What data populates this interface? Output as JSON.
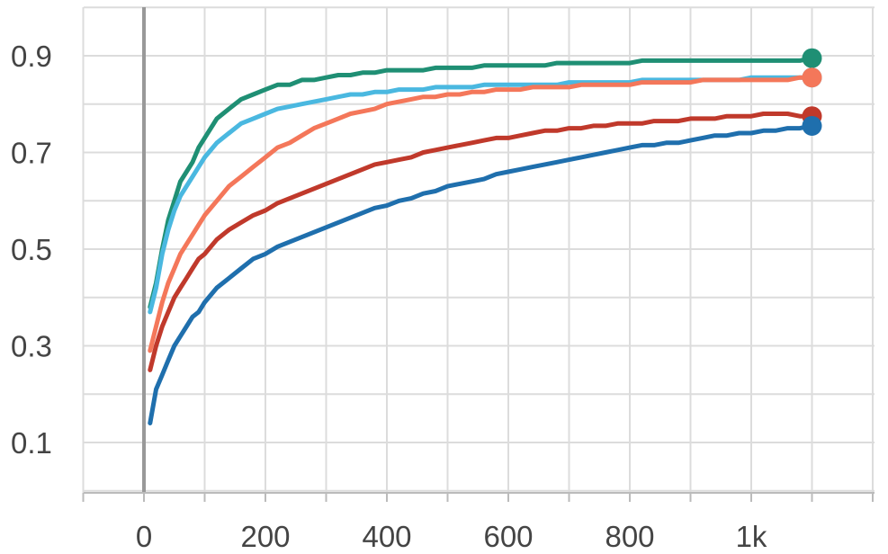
{
  "chart_data": {
    "type": "line",
    "title": "",
    "xlabel": "",
    "ylabel": "",
    "xlim": [
      -100,
      1200
    ],
    "ylim": [
      -0.0,
      1.0
    ],
    "grid": true,
    "legend": "none",
    "x_ticks": [
      {
        "value": 0,
        "label": "0"
      },
      {
        "value": 200,
        "label": "200"
      },
      {
        "value": 400,
        "label": "400"
      },
      {
        "value": 600,
        "label": "600"
      },
      {
        "value": 800,
        "label": "800"
      },
      {
        "value": 1000,
        "label": "1k"
      }
    ],
    "y_ticks": [
      {
        "value": 0.1,
        "label": "0.1"
      },
      {
        "value": 0.3,
        "label": "0.3"
      },
      {
        "value": 0.5,
        "label": "0.5"
      },
      {
        "value": 0.7,
        "label": "0.7"
      },
      {
        "value": 0.9,
        "label": "0.9"
      }
    ],
    "series": [
      {
        "color": "#1f8f74",
        "x": [
          10,
          20,
          30,
          40,
          50,
          60,
          70,
          80,
          90,
          100,
          120,
          140,
          160,
          180,
          200,
          220,
          240,
          260,
          280,
          300,
          320,
          340,
          360,
          380,
          400,
          420,
          440,
          460,
          480,
          500,
          520,
          540,
          560,
          580,
          600,
          620,
          640,
          660,
          680,
          700,
          720,
          740,
          760,
          780,
          800,
          820,
          840,
          860,
          880,
          900,
          920,
          940,
          960,
          980,
          1000,
          1020,
          1040,
          1060,
          1080,
          1100
        ],
        "y": [
          0.38,
          0.43,
          0.5,
          0.56,
          0.6,
          0.64,
          0.66,
          0.68,
          0.71,
          0.73,
          0.77,
          0.79,
          0.81,
          0.82,
          0.83,
          0.84,
          0.84,
          0.85,
          0.85,
          0.855,
          0.86,
          0.86,
          0.865,
          0.865,
          0.87,
          0.87,
          0.87,
          0.87,
          0.875,
          0.875,
          0.875,
          0.875,
          0.88,
          0.88,
          0.88,
          0.88,
          0.88,
          0.88,
          0.885,
          0.885,
          0.885,
          0.885,
          0.885,
          0.885,
          0.885,
          0.89,
          0.89,
          0.89,
          0.89,
          0.89,
          0.89,
          0.89,
          0.89,
          0.89,
          0.89,
          0.89,
          0.89,
          0.89,
          0.89,
          0.895
        ]
      },
      {
        "color": "#4ab8e0",
        "x": [
          10,
          20,
          30,
          40,
          50,
          60,
          70,
          80,
          90,
          100,
          120,
          140,
          160,
          180,
          200,
          220,
          240,
          260,
          280,
          300,
          320,
          340,
          360,
          380,
          400,
          420,
          440,
          460,
          480,
          500,
          520,
          540,
          560,
          580,
          600,
          620,
          640,
          660,
          680,
          700,
          720,
          740,
          760,
          780,
          800,
          820,
          840,
          860,
          880,
          900,
          920,
          940,
          960,
          980,
          1000,
          1020,
          1040,
          1060,
          1080,
          1100
        ],
        "y": [
          0.37,
          0.42,
          0.49,
          0.54,
          0.58,
          0.61,
          0.63,
          0.65,
          0.67,
          0.69,
          0.72,
          0.74,
          0.76,
          0.77,
          0.78,
          0.79,
          0.795,
          0.8,
          0.805,
          0.81,
          0.815,
          0.82,
          0.82,
          0.825,
          0.825,
          0.83,
          0.83,
          0.83,
          0.835,
          0.835,
          0.835,
          0.835,
          0.84,
          0.84,
          0.84,
          0.84,
          0.84,
          0.84,
          0.84,
          0.845,
          0.845,
          0.845,
          0.845,
          0.845,
          0.845,
          0.85,
          0.85,
          0.85,
          0.85,
          0.85,
          0.85,
          0.85,
          0.85,
          0.85,
          0.855,
          0.855,
          0.855,
          0.855,
          0.855,
          0.855
        ]
      },
      {
        "color": "#f4775a",
        "x": [
          10,
          20,
          30,
          40,
          50,
          60,
          70,
          80,
          90,
          100,
          120,
          140,
          160,
          180,
          200,
          220,
          240,
          260,
          280,
          300,
          320,
          340,
          360,
          380,
          400,
          420,
          440,
          460,
          480,
          500,
          520,
          540,
          560,
          580,
          600,
          620,
          640,
          660,
          680,
          700,
          720,
          740,
          760,
          780,
          800,
          820,
          840,
          860,
          880,
          900,
          920,
          940,
          960,
          980,
          1000,
          1020,
          1040,
          1060,
          1080,
          1100
        ],
        "y": [
          0.29,
          0.34,
          0.39,
          0.43,
          0.46,
          0.49,
          0.51,
          0.53,
          0.55,
          0.57,
          0.6,
          0.63,
          0.65,
          0.67,
          0.69,
          0.71,
          0.72,
          0.735,
          0.75,
          0.76,
          0.77,
          0.78,
          0.785,
          0.79,
          0.8,
          0.805,
          0.81,
          0.815,
          0.815,
          0.82,
          0.82,
          0.825,
          0.825,
          0.83,
          0.83,
          0.83,
          0.835,
          0.835,
          0.835,
          0.835,
          0.84,
          0.84,
          0.84,
          0.84,
          0.84,
          0.845,
          0.845,
          0.845,
          0.845,
          0.845,
          0.85,
          0.85,
          0.85,
          0.85,
          0.85,
          0.85,
          0.85,
          0.85,
          0.855,
          0.855
        ]
      },
      {
        "color": "#c0392b",
        "x": [
          10,
          20,
          30,
          40,
          50,
          60,
          70,
          80,
          90,
          100,
          120,
          140,
          160,
          180,
          200,
          220,
          240,
          260,
          280,
          300,
          320,
          340,
          360,
          380,
          400,
          420,
          440,
          460,
          480,
          500,
          520,
          540,
          560,
          580,
          600,
          620,
          640,
          660,
          680,
          700,
          720,
          740,
          760,
          780,
          800,
          820,
          840,
          860,
          880,
          900,
          920,
          940,
          960,
          980,
          1000,
          1020,
          1040,
          1060,
          1080,
          1100
        ],
        "y": [
          0.25,
          0.3,
          0.34,
          0.37,
          0.4,
          0.42,
          0.44,
          0.46,
          0.48,
          0.49,
          0.52,
          0.54,
          0.555,
          0.57,
          0.58,
          0.595,
          0.605,
          0.615,
          0.625,
          0.635,
          0.645,
          0.655,
          0.665,
          0.675,
          0.68,
          0.685,
          0.69,
          0.7,
          0.705,
          0.71,
          0.715,
          0.72,
          0.725,
          0.73,
          0.73,
          0.735,
          0.74,
          0.745,
          0.745,
          0.75,
          0.75,
          0.755,
          0.755,
          0.76,
          0.76,
          0.76,
          0.765,
          0.765,
          0.765,
          0.77,
          0.77,
          0.77,
          0.775,
          0.775,
          0.775,
          0.78,
          0.78,
          0.78,
          0.775,
          0.775
        ]
      },
      {
        "color": "#1f6fad",
        "x": [
          10,
          20,
          30,
          40,
          50,
          60,
          70,
          80,
          90,
          100,
          120,
          140,
          160,
          180,
          200,
          220,
          240,
          260,
          280,
          300,
          320,
          340,
          360,
          380,
          400,
          420,
          440,
          460,
          480,
          500,
          520,
          540,
          560,
          580,
          600,
          620,
          640,
          660,
          680,
          700,
          720,
          740,
          760,
          780,
          800,
          820,
          840,
          860,
          880,
          900,
          920,
          940,
          960,
          980,
          1000,
          1020,
          1040,
          1060,
          1080,
          1100
        ],
        "y": [
          0.14,
          0.21,
          0.24,
          0.27,
          0.3,
          0.32,
          0.34,
          0.36,
          0.37,
          0.39,
          0.42,
          0.44,
          0.46,
          0.48,
          0.49,
          0.505,
          0.515,
          0.525,
          0.535,
          0.545,
          0.555,
          0.565,
          0.575,
          0.585,
          0.59,
          0.6,
          0.605,
          0.615,
          0.62,
          0.63,
          0.635,
          0.64,
          0.645,
          0.655,
          0.66,
          0.665,
          0.67,
          0.675,
          0.68,
          0.685,
          0.69,
          0.695,
          0.7,
          0.705,
          0.71,
          0.715,
          0.715,
          0.72,
          0.72,
          0.725,
          0.73,
          0.735,
          0.735,
          0.74,
          0.74,
          0.745,
          0.745,
          0.75,
          0.75,
          0.755
        ]
      }
    ]
  }
}
